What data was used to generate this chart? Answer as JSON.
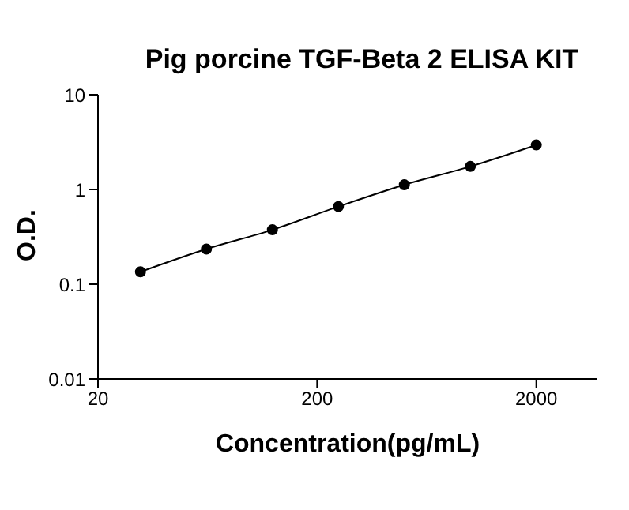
{
  "chart_data": {
    "type": "line",
    "title": "Pig porcine TGF-Beta 2 ELISA KIT",
    "xlabel": "Concentration(pg/mL)",
    "ylabel": "O.D.",
    "x": [
      31.25,
      62.5,
      125,
      250,
      500,
      1000,
      2000
    ],
    "series": [
      {
        "color": "#000000",
        "values": [
          0.135,
          0.235,
          0.375,
          0.66,
          1.12,
          1.75,
          2.95
        ]
      }
    ],
    "xlim": [
      20,
      3800
    ],
    "xticks": [
      20,
      200,
      2000
    ],
    "ylim": [
      0.01,
      10
    ],
    "yticks": [
      0.01,
      0.1,
      1,
      10
    ],
    "log": "xy",
    "grid": false,
    "marker": "circle",
    "line_style": "solid"
  }
}
